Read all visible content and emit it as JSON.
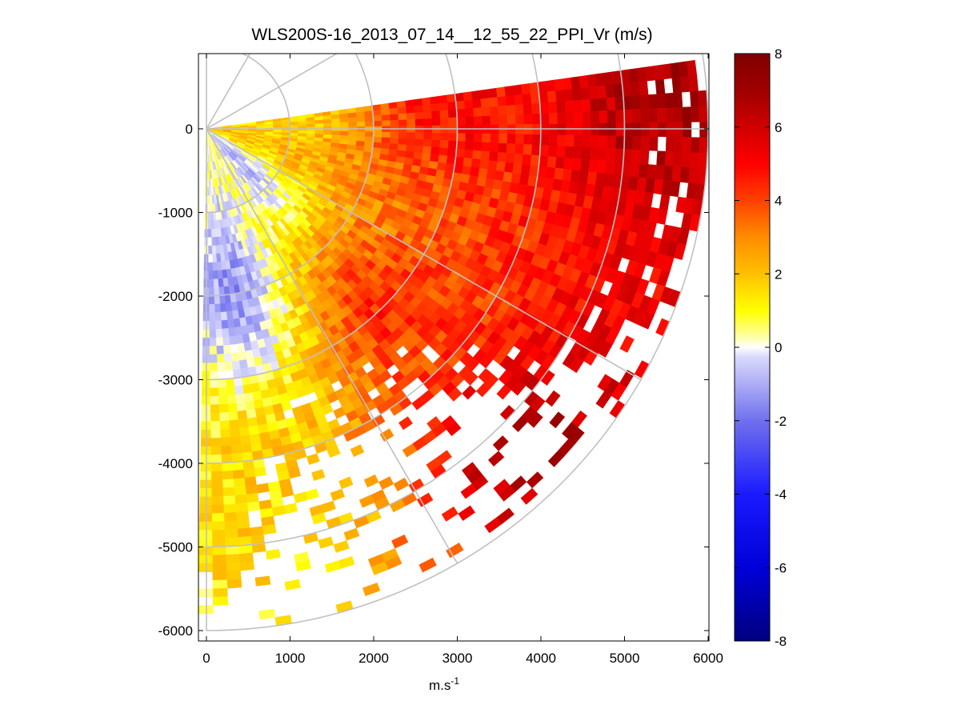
{
  "chart_data": {
    "type": "heatmap",
    "subtype": "polar-ppi-scan",
    "title": "WLS200S-16_2013_07_14__12_55_22_PPI_Vr (m/s)",
    "xlabel": "m.s",
    "xlabel_superscript": "-1",
    "ylabel": "",
    "xlim": [
      -100,
      6200
    ],
    "ylim": [
      -6150,
      900
    ],
    "xticks": [
      0,
      1000,
      2000,
      3000,
      4000,
      5000,
      6000
    ],
    "xtick_labels": [
      "0",
      "1000",
      "2000",
      "3000",
      "4000",
      "5000",
      "6000"
    ],
    "yticks": [
      0,
      -1000,
      -2000,
      -3000,
      -4000,
      -5000,
      -6000
    ],
    "ytick_labels": [
      "0",
      "-1000",
      "-2000",
      "-3000",
      "-4000",
      "-5000",
      "-6000"
    ],
    "polar_grid": {
      "origin": [
        0,
        0
      ],
      "range_rings_m": [
        1000,
        2000,
        3000,
        4000,
        5000,
        6000
      ],
      "spoke_angles_deg": [
        90,
        60,
        30,
        0,
        -30,
        -60,
        -90
      ]
    },
    "scan": {
      "azimuth_start_deg": 8,
      "azimuth_end_deg": -90,
      "max_range_m": 6000,
      "gate_spacing_m": 100,
      "beam_step_deg": 1.8
    },
    "colorbar": {
      "range": [
        -8,
        8
      ],
      "ticks": [
        8,
        6,
        4,
        2,
        0,
        -2,
        -4,
        -6,
        -8
      ],
      "tick_labels": [
        "8",
        "6",
        "4",
        "2",
        "0",
        "-2",
        "-4",
        "-6",
        "-8"
      ],
      "colormap": "blue-white-yellow-red",
      "stops": [
        {
          "v": -8,
          "color": "#000080"
        },
        {
          "v": -6,
          "color": "#0000d8"
        },
        {
          "v": -4,
          "color": "#1a1aff"
        },
        {
          "v": -2,
          "color": "#7070ee"
        },
        {
          "v": -0.05,
          "color": "#e6e6ff"
        },
        {
          "v": 0,
          "color": "#ffffff"
        },
        {
          "v": 0.3,
          "color": "#ffffa0"
        },
        {
          "v": 1,
          "color": "#ffff00"
        },
        {
          "v": 2,
          "color": "#ffc000"
        },
        {
          "v": 3,
          "color": "#ff8c00"
        },
        {
          "v": 4,
          "color": "#ff4000"
        },
        {
          "v": 5,
          "color": "#ff0000"
        },
        {
          "v": 6,
          "color": "#d00000"
        },
        {
          "v": 7,
          "color": "#a00000"
        },
        {
          "v": 8,
          "color": "#800000"
        }
      ]
    },
    "velocity_field": {
      "description_points": [
        {
          "azimuth_deg": 5,
          "range_m": 1000,
          "vr": 1.5
        },
        {
          "azimuth_deg": 5,
          "range_m": 3000,
          "vr": 5
        },
        {
          "azimuth_deg": 5,
          "range_m": 5500,
          "vr": 7
        },
        {
          "azimuth_deg": -45,
          "range_m": 500,
          "vr": -1
        },
        {
          "azimuth_deg": -45,
          "range_m": 3000,
          "vr": 4.5
        },
        {
          "azimuth_deg": -45,
          "range_m": 5500,
          "vr": 7
        },
        {
          "azimuth_deg": -80,
          "range_m": 2000,
          "vr": -1.5
        },
        {
          "azimuth_deg": -80,
          "range_m": 5000,
          "vr": 1.5
        },
        {
          "azimuth_deg": -87,
          "range_m": 5800,
          "vr": 1
        }
      ],
      "colors": {
        "grid": "#c0c0c0",
        "axes": "#000000"
      }
    }
  }
}
